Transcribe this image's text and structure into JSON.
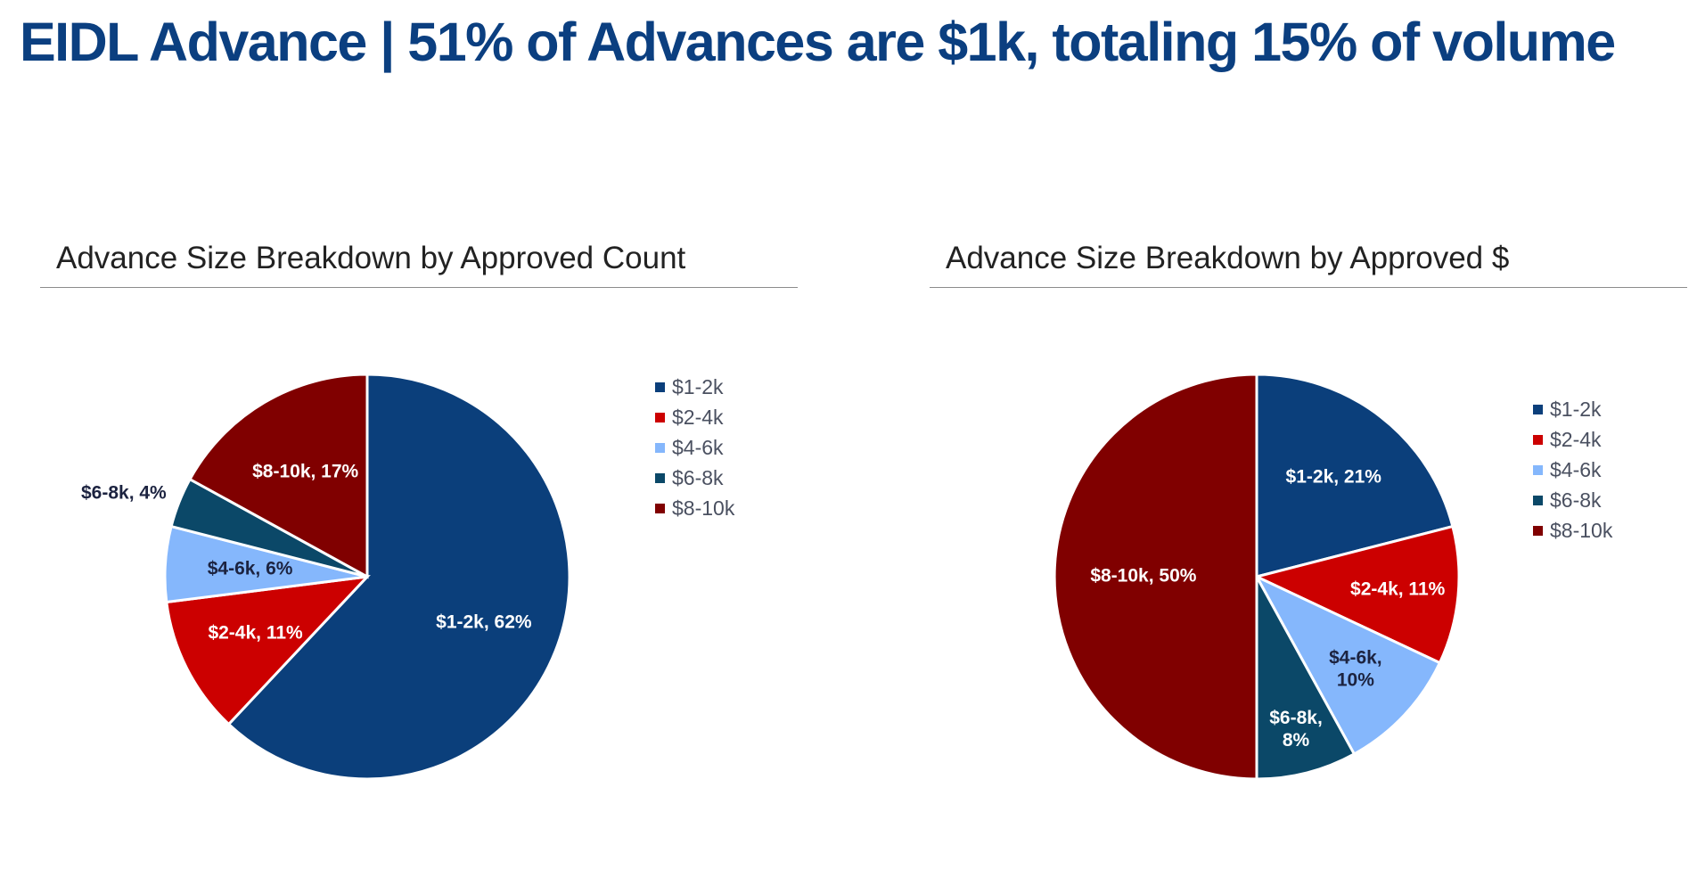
{
  "title": "EIDL Advance | 51% of Advances are $1k, totaling 15% of volume",
  "colors": {
    "title": "#0b3f80",
    "s1_2k": "#0b3f7b",
    "s2_4k": "#cc0000",
    "s4_6k": "#85b7fc",
    "s6_8k": "#0b4868",
    "s8_10k": "#800000"
  },
  "chart_data": [
    {
      "type": "pie",
      "title": "Advance Size Breakdown by Approved Count",
      "legend_position": "right",
      "categories": [
        "$1-2k",
        "$2-4k",
        "$4-6k",
        "$6-8k",
        "$8-10k"
      ],
      "values": [
        62,
        11,
        6,
        4,
        17
      ],
      "value_format": "percent",
      "data_labels": [
        "$1-2k, 62%",
        "$2-4k, 11%",
        "$4-6k, 6%",
        "$6-8k, 4%",
        "$8-10k, 17%"
      ]
    },
    {
      "type": "pie",
      "title": "Advance Size Breakdown by Approved $",
      "legend_position": "right",
      "categories": [
        "$1-2k",
        "$2-4k",
        "$4-6k",
        "$6-8k",
        "$8-10k"
      ],
      "values": [
        21,
        11,
        10,
        8,
        50
      ],
      "value_format": "percent",
      "data_labels": [
        "$1-2k, 21%",
        "$2-4k, 11%",
        "$4-6k, 10%",
        "$6-8k, 8%",
        "$8-10k, 50%"
      ]
    }
  ]
}
